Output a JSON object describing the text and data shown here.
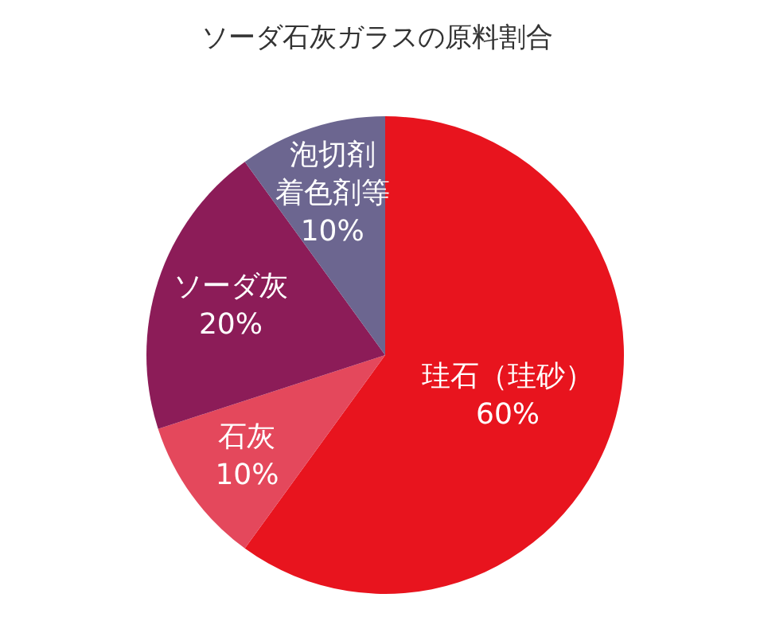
{
  "chart_data": {
    "type": "pie",
    "title": "ソーダ石灰ガラスの原料割合",
    "categories": [
      "珪石（珪砂）",
      "石灰",
      "ソーダ灰",
      "泡切剤着色剤等"
    ],
    "values": [
      60,
      10,
      20,
      10
    ],
    "value_labels": [
      "60%",
      "10%",
      "20%",
      "10%"
    ],
    "colors": [
      "#e8141e",
      "#e4485c",
      "#8c1c58",
      "#6c6690"
    ]
  }
}
